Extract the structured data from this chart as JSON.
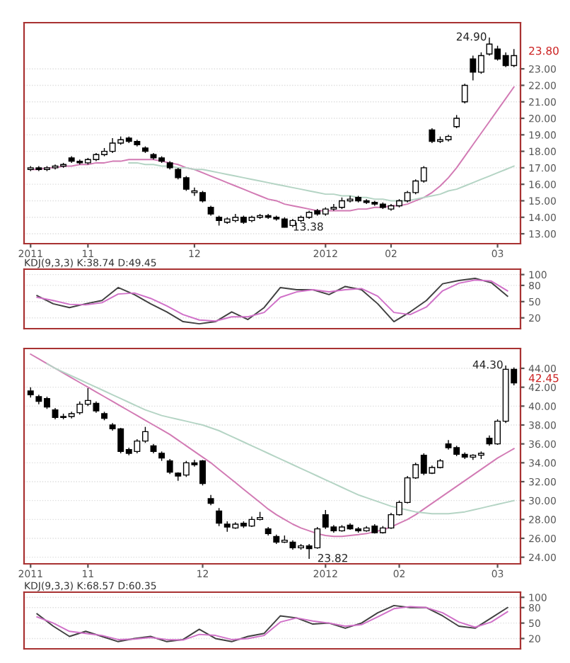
{
  "chart_data": [
    {
      "type": "candlestick",
      "categories": [
        "2011",
        null,
        null,
        null,
        null,
        null,
        null,
        "11",
        null,
        null,
        null,
        null,
        null,
        null,
        null,
        null,
        null,
        null,
        null,
        null,
        "12",
        null,
        null,
        null,
        null,
        null,
        null,
        null,
        null,
        null,
        null,
        null,
        null,
        null,
        null,
        null,
        "2012",
        null,
        null,
        null,
        null,
        null,
        null,
        null,
        "02",
        null,
        null,
        null,
        null,
        null,
        null,
        null,
        null,
        null,
        null,
        null,
        null,
        "03",
        null,
        null
      ],
      "ohlc": [
        [
          16.9,
          17.1,
          16.8,
          17.0
        ],
        [
          17.0,
          17.1,
          16.8,
          16.9
        ],
        [
          16.9,
          17.1,
          16.8,
          17.0
        ],
        [
          17.0,
          17.2,
          16.9,
          17.1
        ],
        [
          17.1,
          17.3,
          17.0,
          17.2
        ],
        [
          17.6,
          17.7,
          17.3,
          17.4
        ],
        [
          17.4,
          17.5,
          17.2,
          17.3
        ],
        [
          17.3,
          17.6,
          17.2,
          17.5
        ],
        [
          17.5,
          17.9,
          17.4,
          17.8
        ],
        [
          17.8,
          18.2,
          17.7,
          18.0
        ],
        [
          18.0,
          18.8,
          17.9,
          18.5
        ],
        [
          18.5,
          18.9,
          18.4,
          18.7
        ],
        [
          18.8,
          18.9,
          18.5,
          18.6
        ],
        [
          18.6,
          18.7,
          18.3,
          18.4
        ],
        [
          18.2,
          18.3,
          17.9,
          18.0
        ],
        [
          17.8,
          17.9,
          17.5,
          17.6
        ],
        [
          17.6,
          17.7,
          17.3,
          17.4
        ],
        [
          17.3,
          17.4,
          16.9,
          17.0
        ],
        [
          16.9,
          17.0,
          16.3,
          16.4
        ],
        [
          16.4,
          16.5,
          15.6,
          15.7
        ],
        [
          15.5,
          15.8,
          15.3,
          15.6
        ],
        [
          15.5,
          15.6,
          14.9,
          15.0
        ],
        [
          14.6,
          14.7,
          14.1,
          14.2
        ],
        [
          14.0,
          14.1,
          13.5,
          13.8
        ],
        [
          13.7,
          14.0,
          13.6,
          13.9
        ],
        [
          13.8,
          14.2,
          13.7,
          14.0
        ],
        [
          14.0,
          14.1,
          13.6,
          13.7
        ],
        [
          13.8,
          14.1,
          13.7,
          14.0
        ],
        [
          14.0,
          14.2,
          13.9,
          14.1
        ],
        [
          14.1,
          14.2,
          13.9,
          14.0
        ],
        [
          14.0,
          14.1,
          13.8,
          13.9
        ],
        [
          13.9,
          14.0,
          13.38,
          13.4
        ],
        [
          13.5,
          13.9,
          13.4,
          13.8
        ],
        [
          13.8,
          14.1,
          13.7,
          14.0
        ],
        [
          14.0,
          14.4,
          13.9,
          14.3
        ],
        [
          14.4,
          14.5,
          14.1,
          14.2
        ],
        [
          14.2,
          14.6,
          14.1,
          14.5
        ],
        [
          14.5,
          14.8,
          14.4,
          14.6
        ],
        [
          14.6,
          15.2,
          14.5,
          15.0
        ],
        [
          15.0,
          15.3,
          14.9,
          15.1
        ],
        [
          15.2,
          15.3,
          14.9,
          15.0
        ],
        [
          15.0,
          15.1,
          14.8,
          14.9
        ],
        [
          14.9,
          15.0,
          14.7,
          14.8
        ],
        [
          14.8,
          14.9,
          14.5,
          14.6
        ],
        [
          14.5,
          14.8,
          14.4,
          14.7
        ],
        [
          14.7,
          15.1,
          14.6,
          15.0
        ],
        [
          15.0,
          15.6,
          14.9,
          15.5
        ],
        [
          15.5,
          16.3,
          15.4,
          16.2
        ],
        [
          16.2,
          17.1,
          16.1,
          17.0
        ],
        [
          19.3,
          19.4,
          18.5,
          18.6
        ],
        [
          18.6,
          18.9,
          18.5,
          18.7
        ],
        [
          18.7,
          19.0,
          18.6,
          18.9
        ],
        [
          19.5,
          20.2,
          19.4,
          20.0
        ],
        [
          21.0,
          22.1,
          20.9,
          22.0
        ],
        [
          23.6,
          23.8,
          22.3,
          22.8
        ],
        [
          22.8,
          24.0,
          22.7,
          23.8
        ],
        [
          23.9,
          24.9,
          23.8,
          24.5
        ],
        [
          24.2,
          24.4,
          23.5,
          23.6
        ],
        [
          23.8,
          24.0,
          23.1,
          23.2
        ],
        [
          23.2,
          24.2,
          23.1,
          23.8
        ]
      ],
      "series": [
        {
          "type": "line",
          "color": "#d27ab4",
          "values": [
            16.9,
            16.9,
            17.0,
            17.0,
            17.1,
            17.1,
            17.2,
            17.2,
            17.3,
            17.3,
            17.4,
            17.4,
            17.5,
            17.5,
            17.5,
            17.5,
            17.4,
            17.3,
            17.2,
            17.0,
            16.9,
            16.7,
            16.5,
            16.3,
            16.1,
            15.9,
            15.7,
            15.5,
            15.3,
            15.1,
            15.0,
            14.8,
            14.7,
            14.6,
            14.5,
            14.4,
            14.4,
            14.4,
            14.4,
            14.4,
            14.5,
            14.5,
            14.6,
            14.6,
            14.7,
            14.7,
            14.8,
            15.0,
            15.2,
            15.5,
            15.9,
            16.4,
            17.0,
            17.7,
            18.4,
            19.1,
            19.8,
            20.5,
            21.2,
            21.9
          ]
        },
        {
          "type": "line",
          "color": "#b4d4c4",
          "values": [
            null,
            null,
            null,
            null,
            null,
            null,
            null,
            null,
            null,
            null,
            null,
            null,
            17.3,
            17.3,
            17.2,
            17.2,
            17.1,
            17.1,
            17.0,
            17.0,
            16.9,
            16.9,
            16.8,
            16.7,
            16.6,
            16.5,
            16.4,
            16.3,
            16.2,
            16.1,
            16.0,
            15.9,
            15.8,
            15.7,
            15.6,
            15.5,
            15.4,
            15.4,
            15.3,
            15.3,
            15.2,
            15.2,
            15.1,
            15.1,
            15.0,
            15.0,
            15.0,
            15.1,
            15.2,
            15.3,
            15.4,
            15.6,
            15.7,
            15.9,
            16.1,
            16.3,
            16.5,
            16.7,
            16.9,
            17.1
          ]
        }
      ],
      "ylim": [
        12.4,
        25.8
      ],
      "yticks": [
        {
          "value": 13,
          "label": "13.00"
        },
        {
          "value": 14,
          "label": "14.00"
        },
        {
          "value": 15,
          "label": "15.00"
        },
        {
          "value": 16,
          "label": "16.00"
        },
        {
          "value": 17,
          "label": "17.00"
        },
        {
          "value": 18,
          "label": "18.00"
        },
        {
          "value": 19,
          "label": "19.00"
        },
        {
          "value": 20,
          "label": "20.00"
        },
        {
          "value": 21,
          "label": "21.00"
        },
        {
          "value": 22,
          "label": "22.00"
        },
        {
          "value": 23,
          "label": "23.00"
        }
      ],
      "annotations": [
        "24.90",
        "13.38",
        "23.80"
      ],
      "grid": "y"
    },
    {
      "type": "line",
      "title": "KDJ(9,3,3) K:38.74 D:49.45",
      "categories": [
        null,
        null,
        null,
        null,
        null,
        null,
        null,
        null,
        null,
        null,
        null,
        null,
        null,
        null,
        null,
        null,
        null,
        null,
        null,
        null,
        null,
        null,
        null,
        null,
        null,
        null,
        null,
        null,
        null,
        null
      ],
      "series": [
        {
          "color": "#404040",
          "values": [
            61,
            46,
            39,
            46,
            52,
            76,
            63,
            46,
            31,
            13,
            9,
            13,
            31,
            17,
            39,
            76,
            72,
            72,
            63,
            78,
            72,
            46,
            13,
            31,
            52,
            83,
            89,
            93,
            85,
            60
          ]
        },
        {
          "color": "#d070c8",
          "values": [
            58,
            52,
            45,
            44,
            48,
            64,
            66,
            56,
            42,
            26,
            16,
            14,
            22,
            22,
            30,
            58,
            68,
            72,
            68,
            72,
            74,
            60,
            30,
            26,
            40,
            70,
            84,
            90,
            88,
            70
          ]
        }
      ],
      "ylim": [
        0,
        110
      ],
      "yticks": [
        20,
        50,
        80,
        100
      ],
      "tick_labels": "y",
      "grid": "y"
    },
    {
      "type": "candlestick",
      "categories": [
        "2011",
        null,
        null,
        null,
        null,
        null,
        null,
        "11",
        null,
        null,
        null,
        null,
        null,
        null,
        null,
        null,
        null,
        null,
        null,
        null,
        null,
        "12",
        null,
        null,
        null,
        null,
        null,
        null,
        null,
        null,
        null,
        null,
        null,
        null,
        null,
        null,
        "2012",
        null,
        null,
        null,
        null,
        null,
        null,
        null,
        null,
        "02",
        null,
        null,
        null,
        null,
        null,
        null,
        null,
        null,
        null,
        null,
        null,
        "03",
        null,
        null
      ],
      "ohlc": [
        [
          41.6,
          42.0,
          40.9,
          41.2
        ],
        [
          41.0,
          41.2,
          40.2,
          40.5
        ],
        [
          40.8,
          41.0,
          39.7,
          39.9
        ],
        [
          39.6,
          39.8,
          38.6,
          38.8
        ],
        [
          38.8,
          39.2,
          38.6,
          38.9
        ],
        [
          38.9,
          39.4,
          38.7,
          39.2
        ],
        [
          39.3,
          40.5,
          39.1,
          40.2
        ],
        [
          40.2,
          41.9,
          40.0,
          40.6
        ],
        [
          40.3,
          40.5,
          39.3,
          39.5
        ],
        [
          39.2,
          39.4,
          38.5,
          38.7
        ],
        [
          38.0,
          38.2,
          37.4,
          37.6
        ],
        [
          37.6,
          37.7,
          35.0,
          35.2
        ],
        [
          35.4,
          35.6,
          34.8,
          35.0
        ],
        [
          35.2,
          36.5,
          35.0,
          36.3
        ],
        [
          36.3,
          37.8,
          36.1,
          37.3
        ],
        [
          35.8,
          36.0,
          35.0,
          35.2
        ],
        [
          35.0,
          35.2,
          34.2,
          34.5
        ],
        [
          34.2,
          34.4,
          32.8,
          33.0
        ],
        [
          32.9,
          33.0,
          32.1,
          32.6
        ],
        [
          32.7,
          34.2,
          32.5,
          34.0
        ],
        [
          34.0,
          34.3,
          33.6,
          33.8
        ],
        [
          34.2,
          34.3,
          31.6,
          31.8
        ],
        [
          30.2,
          30.6,
          29.5,
          29.7
        ],
        [
          28.9,
          29.2,
          27.3,
          27.6
        ],
        [
          27.5,
          27.8,
          26.7,
          27.2
        ],
        [
          27.1,
          27.7,
          27.0,
          27.5
        ],
        [
          27.6,
          27.8,
          27.1,
          27.3
        ],
        [
          27.3,
          28.3,
          27.2,
          28.0
        ],
        [
          28.0,
          28.8,
          27.9,
          28.2
        ],
        [
          27.0,
          27.2,
          26.3,
          26.5
        ],
        [
          26.2,
          26.4,
          25.4,
          25.6
        ],
        [
          25.6,
          26.3,
          25.5,
          25.8
        ],
        [
          25.6,
          25.8,
          24.8,
          25.0
        ],
        [
          25.0,
          25.4,
          24.8,
          25.2
        ],
        [
          25.2,
          25.4,
          23.82,
          24.9
        ],
        [
          25.0,
          27.2,
          24.9,
          27.0
        ],
        [
          28.5,
          29.0,
          27.0,
          27.2
        ],
        [
          27.2,
          27.4,
          26.6,
          26.8
        ],
        [
          26.8,
          27.4,
          26.7,
          27.2
        ],
        [
          27.4,
          27.6,
          26.9,
          27.0
        ],
        [
          27.0,
          27.2,
          26.6,
          26.8
        ],
        [
          26.8,
          27.3,
          26.7,
          27.1
        ],
        [
          27.3,
          27.5,
          26.5,
          26.6
        ],
        [
          26.6,
          27.3,
          26.5,
          27.1
        ],
        [
          27.1,
          28.7,
          27.0,
          28.5
        ],
        [
          28.5,
          30.0,
          28.4,
          29.8
        ],
        [
          29.8,
          32.6,
          29.7,
          32.4
        ],
        [
          32.4,
          34.0,
          32.3,
          33.8
        ],
        [
          34.8,
          35.0,
          32.7,
          32.9
        ],
        [
          32.9,
          33.7,
          32.8,
          33.5
        ],
        [
          33.5,
          34.4,
          33.4,
          34.2
        ],
        [
          36.0,
          36.4,
          35.4,
          35.6
        ],
        [
          35.6,
          35.8,
          34.7,
          34.9
        ],
        [
          34.9,
          35.1,
          34.4,
          34.6
        ],
        [
          34.6,
          34.9,
          34.3,
          34.8
        ],
        [
          34.8,
          35.2,
          34.4,
          35.0
        ],
        [
          36.6,
          36.9,
          35.8,
          36.0
        ],
        [
          36.0,
          38.6,
          35.9,
          38.4
        ],
        [
          38.4,
          44.3,
          38.2,
          43.9
        ],
        [
          43.9,
          44.1,
          42.2,
          42.45
        ]
      ],
      "series": [
        {
          "type": "line",
          "color": "#d27ab4",
          "values": [
            45.5,
            45.0,
            44.5,
            44.0,
            43.5,
            43.0,
            42.5,
            42.0,
            41.5,
            41.0,
            40.5,
            40.0,
            39.5,
            39.0,
            38.5,
            38.0,
            37.5,
            37.0,
            36.4,
            35.8,
            35.2,
            34.6,
            34.0,
            33.3,
            32.6,
            31.9,
            31.2,
            30.5,
            29.8,
            29.1,
            28.5,
            28.0,
            27.5,
            27.1,
            26.8,
            26.5,
            26.3,
            26.2,
            26.2,
            26.3,
            26.4,
            26.5,
            26.7,
            26.9,
            27.2,
            27.6,
            28.0,
            28.5,
            29.1,
            29.7,
            30.3,
            30.9,
            31.5,
            32.1,
            32.7,
            33.3,
            33.9,
            34.5,
            35.0,
            35.5
          ]
        },
        {
          "type": "line",
          "color": "#b4d4c4",
          "values": [
            null,
            null,
            44.5,
            44.0,
            43.6,
            43.2,
            42.8,
            42.4,
            42.0,
            41.6,
            41.2,
            40.8,
            40.4,
            40.0,
            39.6,
            39.3,
            39.0,
            38.8,
            38.6,
            38.4,
            38.2,
            38.0,
            37.7,
            37.4,
            37.0,
            36.6,
            36.2,
            35.8,
            35.4,
            35.0,
            34.6,
            34.2,
            33.8,
            33.4,
            33.0,
            32.6,
            32.2,
            31.8,
            31.4,
            31.0,
            30.6,
            30.3,
            30.0,
            29.7,
            29.4,
            29.2,
            29.0,
            28.8,
            28.7,
            28.6,
            28.6,
            28.6,
            28.7,
            28.8,
            29.0,
            29.2,
            29.4,
            29.6,
            29.8,
            30.0
          ]
        }
      ],
      "ylim": [
        23.3,
        46.1
      ],
      "yticks": [
        {
          "value": 24,
          "label": "24.00"
        },
        {
          "value": 26,
          "label": "26.00"
        },
        {
          "value": 28,
          "label": "28.00"
        },
        {
          "value": 30,
          "label": "30.00"
        },
        {
          "value": 32,
          "label": "32.00"
        },
        {
          "value": 34,
          "label": "34.00"
        },
        {
          "value": 36,
          "label": "36.00"
        },
        {
          "value": 38,
          "label": "38.00"
        },
        {
          "value": 40,
          "label": "40.00"
        },
        {
          "value": 42,
          "label": "42.00"
        },
        {
          "value": 44,
          "label": "44.00"
        }
      ],
      "annotations": [
        "44.30",
        "23.82",
        "42.45"
      ],
      "grid": "y"
    },
    {
      "type": "line",
      "title": "KDJ(9,3,3) K:68.57 D:60.35",
      "categories": [
        null,
        null,
        null,
        null,
        null,
        null,
        null,
        null,
        null,
        null,
        null,
        null,
        null,
        null,
        null,
        null,
        null,
        null,
        null,
        null,
        null,
        null,
        null,
        null,
        null,
        null,
        null,
        null,
        null,
        null
      ],
      "series": [
        {
          "color": "#404040",
          "values": [
            68,
            44,
            24,
            34,
            24,
            14,
            20,
            24,
            14,
            18,
            38,
            20,
            14,
            24,
            30,
            64,
            60,
            48,
            50,
            40,
            50,
            70,
            84,
            80,
            80,
            64,
            44,
            40,
            60,
            80
          ]
        },
        {
          "color": "#d070c8",
          "values": [
            62,
            50,
            34,
            30,
            26,
            18,
            19,
            22,
            18,
            17,
            28,
            26,
            18,
            20,
            26,
            52,
            60,
            54,
            50,
            44,
            47,
            62,
            78,
            82,
            80,
            70,
            52,
            42,
            52,
            72
          ]
        }
      ],
      "ylim": [
        0,
        110
      ],
      "yticks": [
        20,
        50,
        80,
        100
      ],
      "tick_labels": "y",
      "grid": "y"
    }
  ]
}
